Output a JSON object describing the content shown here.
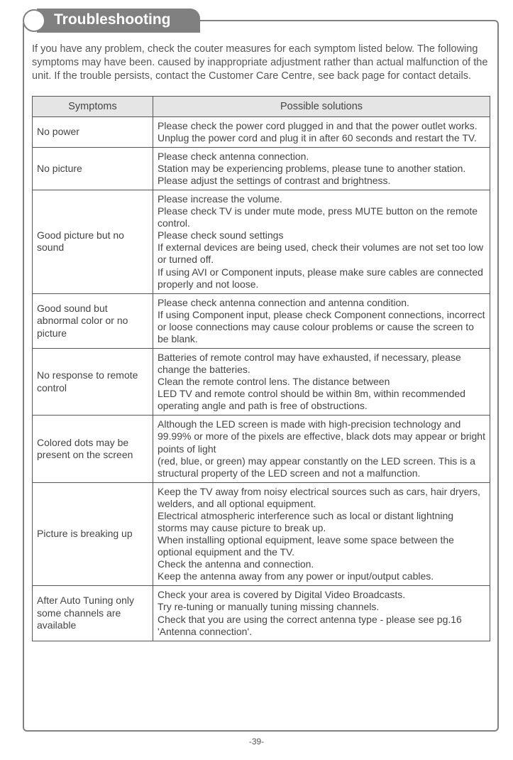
{
  "header": {
    "title": "Troubleshooting"
  },
  "intro": "If you have any problem, check the couter measures for each symptom listed below. The following symptoms may have been. caused by inappropriate adjustment rather than actual malfunction of the unit. If the trouble persists, contact the Customer Care Centre, see back page for contact details.",
  "table": {
    "col_symptom": "Symptoms",
    "col_solution": "Possible solutions",
    "rows": [
      {
        "symptom": "No power",
        "solution": "Please check the power cord plugged in and that the power outlet works.\nUnplug the power cord and plug it in after 60 seconds and restart the TV."
      },
      {
        "symptom": "No picture",
        "solution": "Please check antenna connection.\nStation may be experiencing  problems, please tune to another station.\nPlease adjust the settings of contrast and brightness."
      },
      {
        "symptom": "Good picture but no sound",
        "solution": "Please increase the volume.\nPlease check TV is under mute mode, press MUTE button on the remote control.\nPlease check sound settings\nIf external devices are being used, check their volumes are not set too low or turned off.\nIf using AVI or Component inputs, please make sure cables are connected properly and not loose."
      },
      {
        "symptom": "Good sound but abnormal color or no picture",
        "solution": "Please check antenna connection and antenna condition.\nIf using Component input, please check Component connections, incorrect or loose connections may cause colour problems or cause the screen to be blank."
      },
      {
        "symptom": "No response to remote control",
        "solution": "Batteries of remote control may have exhausted, if necessary, please change the batteries.\nClean the remote control lens. The distance between\nLED TV and remote control should be within 8m, within recommended operating angle and path is free of obstructions."
      },
      {
        "symptom": "Colored dots may be present on the screen",
        "solution": "Although the LED screen is made with high-precision technology and 99.99% or more of the pixels are effective, black dots may appear or bright points of light\n(red, blue, or green) may appear constantly on the LED screen. This is a structural property of the LED screen and not a malfunction."
      },
      {
        "symptom": "Picture is breaking up",
        "solution": "Keep the TV away from noisy electrical sources such as cars, hair dryers, welders, and all optional equipment.\nElectrical atmospheric interference such as local or distant lightning storms may cause picture to break up.\nWhen installing optional equipment, leave some space between the optional equipment and the TV.\nCheck the antenna and connection.\nKeep the antenna away from any power or input/output cables."
      },
      {
        "symptom": "After Auto Tuning only some channels are available",
        "solution": "Check your area is covered by Digital Video Broadcasts.\nTry re-tuning or manually tuning missing channels.\nCheck that you are using the correct antenna type - please see pg.16 'Antenna connection'."
      }
    ]
  },
  "page_number": "-39-"
}
